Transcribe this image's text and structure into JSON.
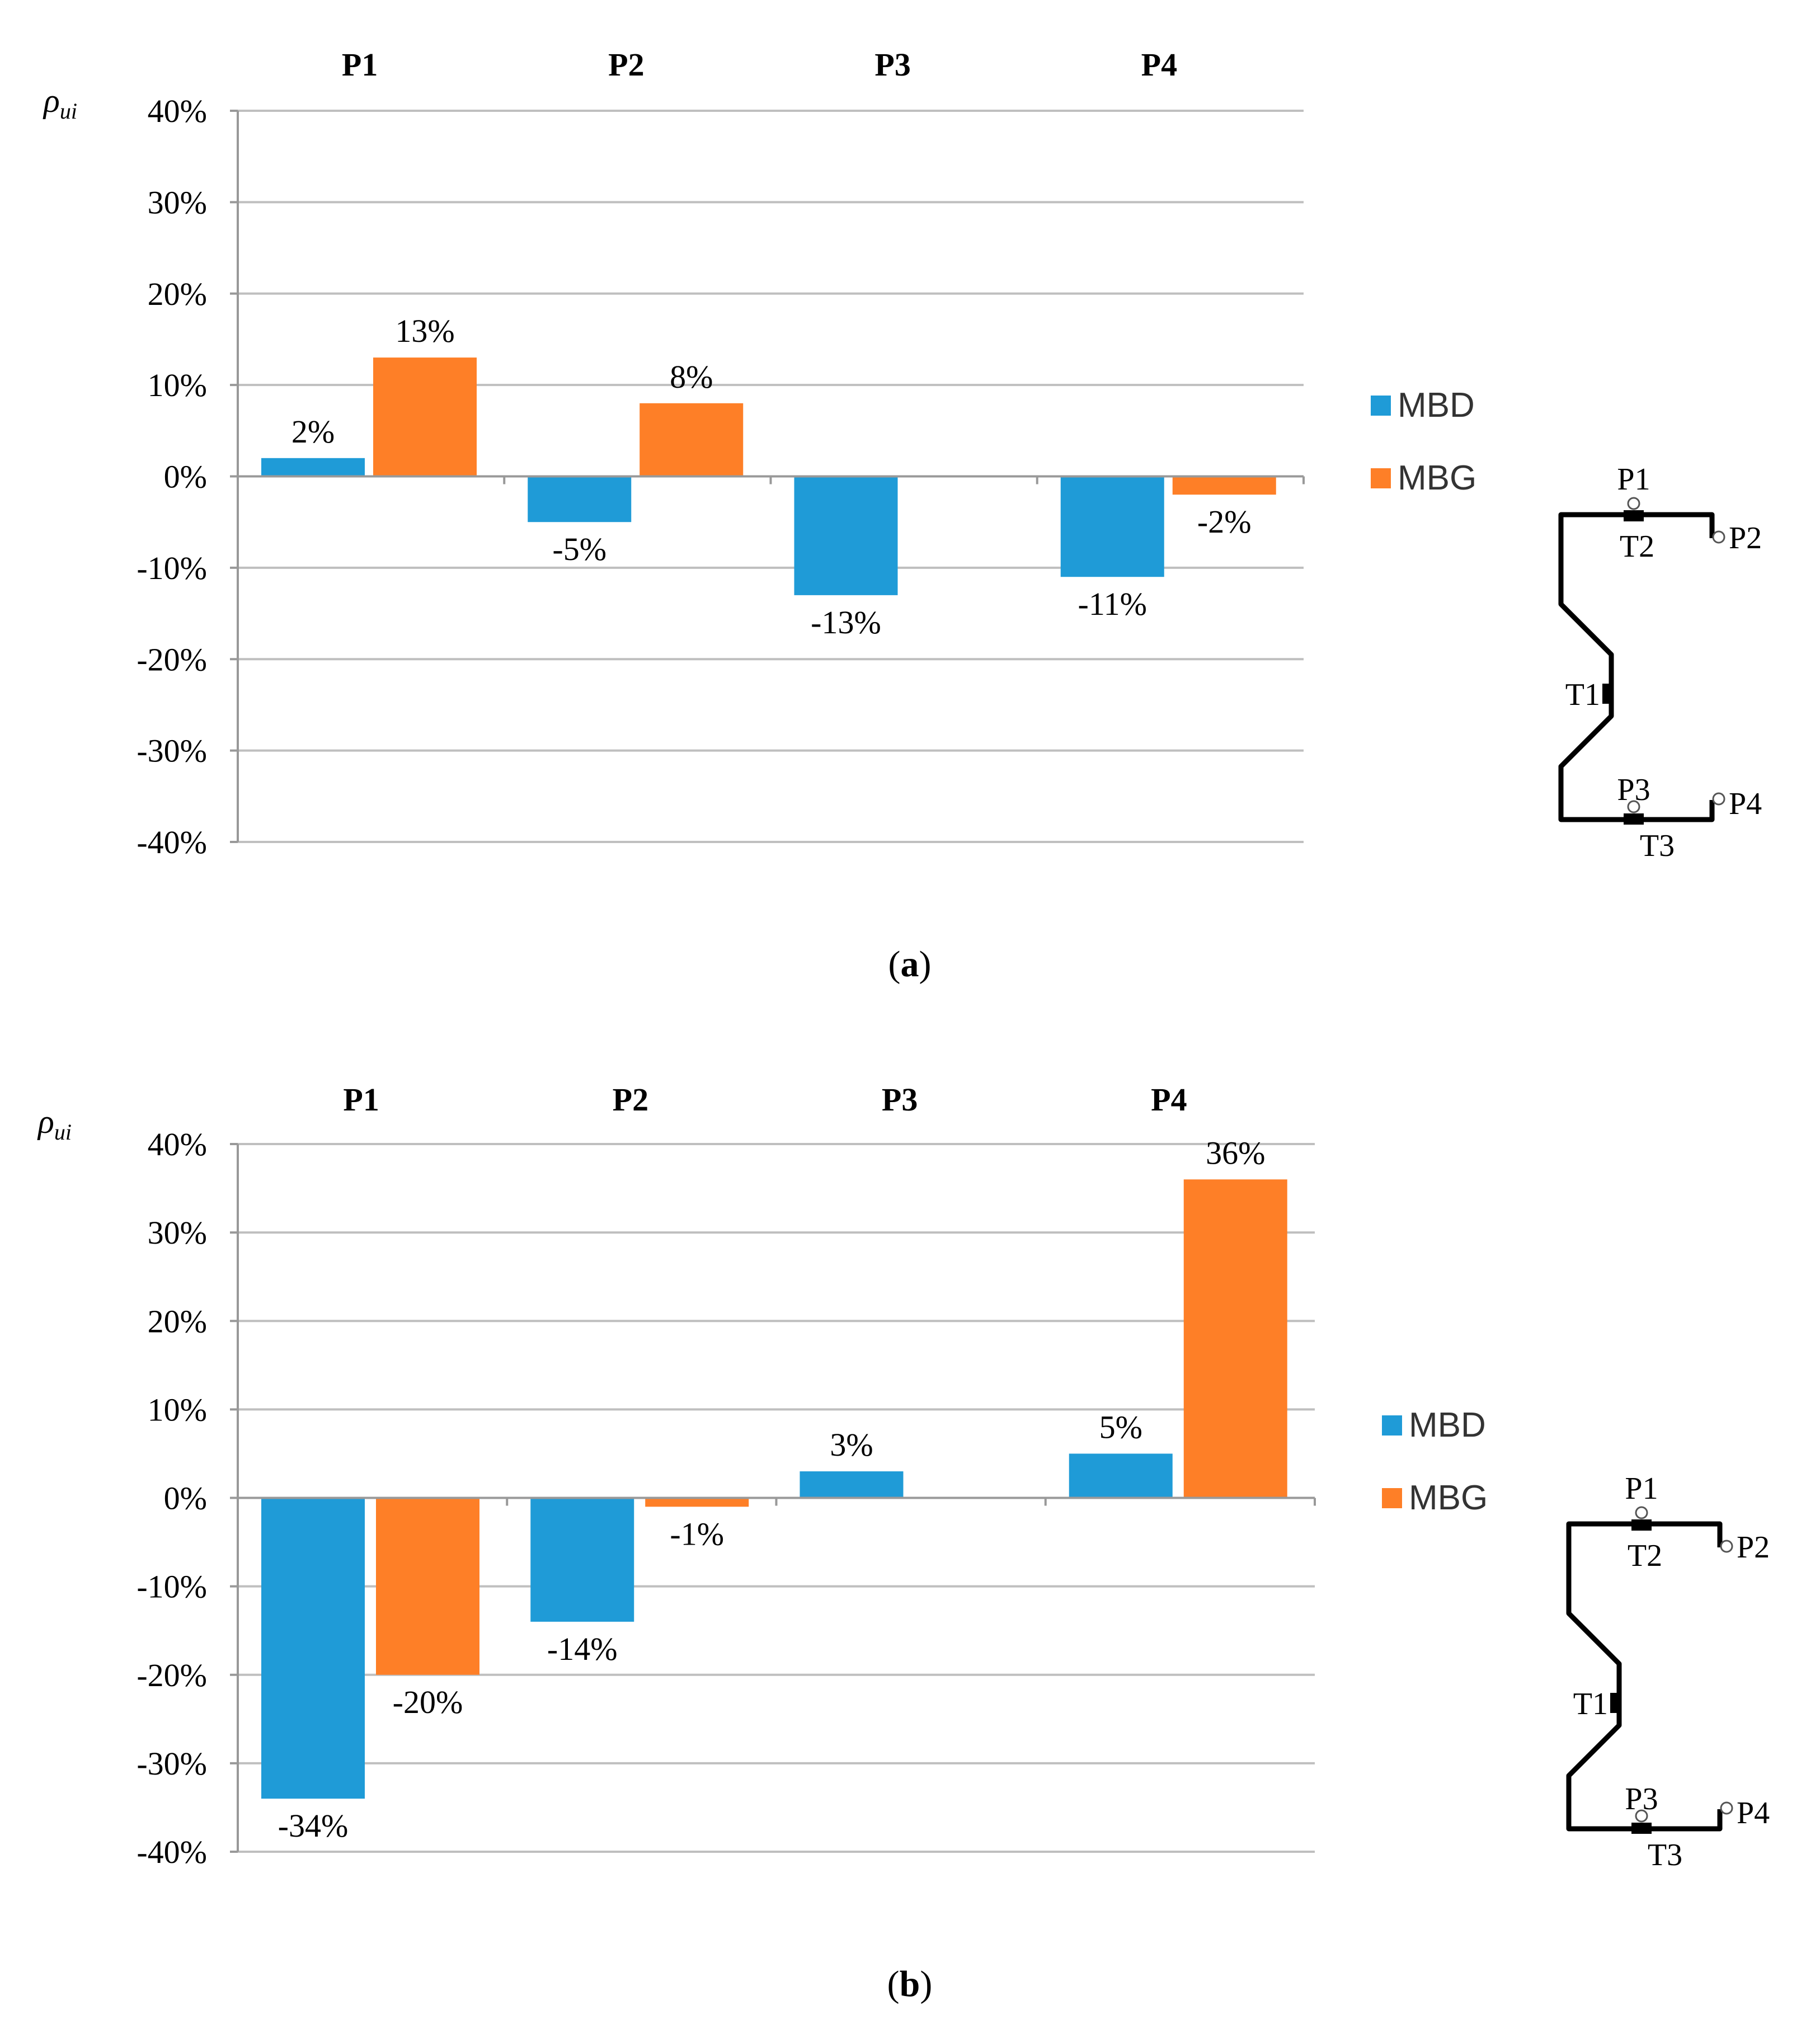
{
  "colors": {
    "mbd": "#1f9bd7",
    "mbg": "#fe7f27",
    "grid": "#bfbfbf",
    "axis": "#999999"
  },
  "diagram_labels": {
    "p1": "P1",
    "p2": "P2",
    "p3": "P3",
    "p4": "P4",
    "t1": "T1",
    "t2": "T2",
    "t3": "T3"
  },
  "chart_data": [
    {
      "type": "bar",
      "panel_label": "a",
      "ylabel": "ρ",
      "ylabel_sub": "ui",
      "categories": [
        "P1",
        "P2",
        "P3",
        "P4"
      ],
      "ylim": [
        -40,
        40
      ],
      "yticks": [
        40,
        30,
        20,
        10,
        0,
        -10,
        -20,
        -30,
        -40
      ],
      "ytick_labels": [
        "40%",
        "30%",
        "20%",
        "10%",
        "0%",
        "-10%",
        "-20%",
        "-30%",
        "-40%"
      ],
      "grid": true,
      "legend_position": "right",
      "series": [
        {
          "name": "MBD",
          "values": [
            2,
            -5,
            -13,
            -11
          ],
          "labels": [
            "2%",
            "-5%",
            "-13%",
            "-11%"
          ]
        },
        {
          "name": "MBG",
          "values": [
            13,
            8,
            null,
            -2
          ],
          "labels": [
            "13%",
            "8%",
            "",
            "-2%"
          ]
        }
      ]
    },
    {
      "type": "bar",
      "panel_label": "b",
      "ylabel": "ρ",
      "ylabel_sub": "ui",
      "categories": [
        "P1",
        "P2",
        "P3",
        "P4"
      ],
      "ylim": [
        -40,
        40
      ],
      "yticks": [
        40,
        30,
        20,
        10,
        0,
        -10,
        -20,
        -30,
        -40
      ],
      "ytick_labels": [
        "40%",
        "30%",
        "20%",
        "10%",
        "0%",
        "-10%",
        "-20%",
        "-30%",
        "-40%"
      ],
      "grid": true,
      "legend_position": "right",
      "series": [
        {
          "name": "MBD",
          "values": [
            -34,
            -14,
            3,
            5
          ],
          "labels": [
            "-34%",
            "-14%",
            "3%",
            "5%"
          ]
        },
        {
          "name": "MBG",
          "values": [
            -20,
            -1,
            null,
            36
          ],
          "labels": [
            "-20%",
            "-1%",
            "",
            "36%"
          ]
        }
      ]
    }
  ]
}
